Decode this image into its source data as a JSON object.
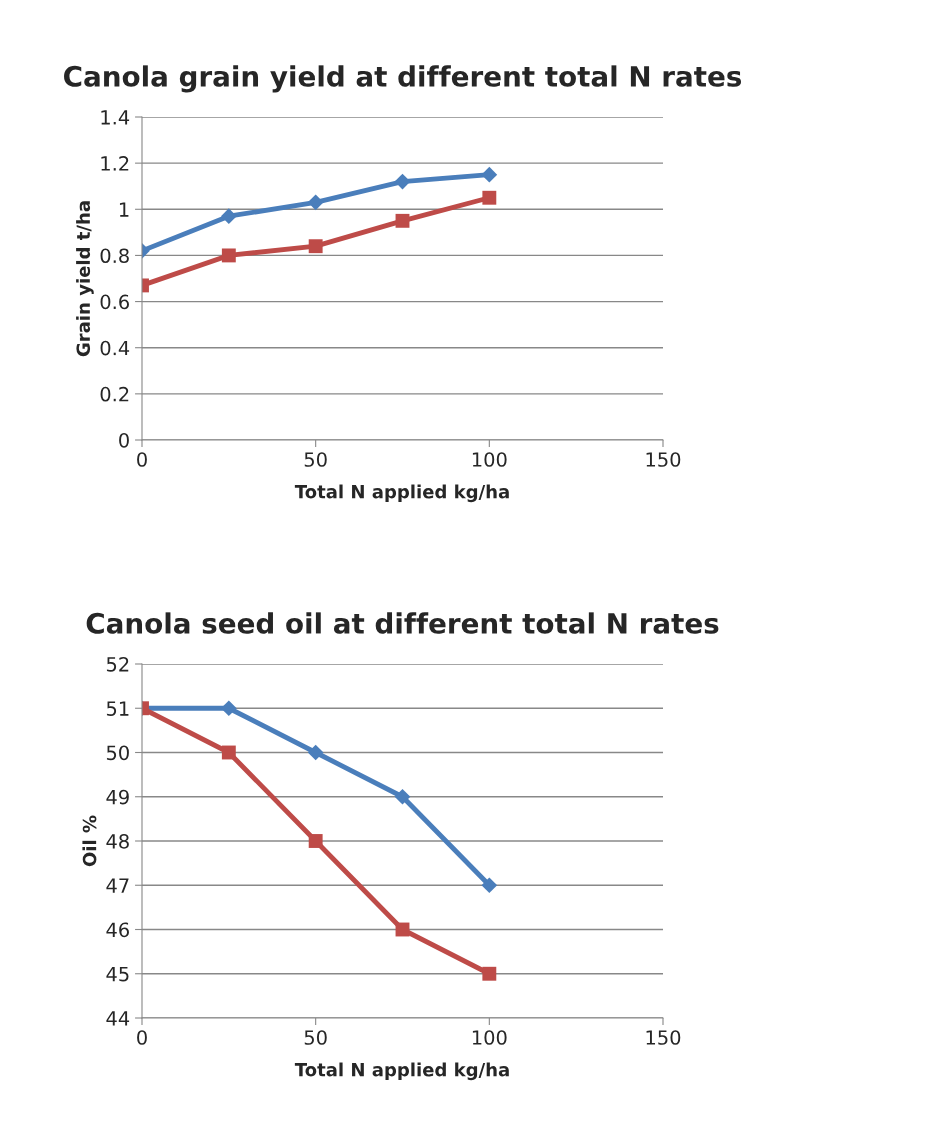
{
  "chart_data": [
    {
      "type": "line",
      "title": "Canola grain yield at different total N rates",
      "xlabel": "Total N applied kg/ha",
      "ylabel": "Grain yield t/ha",
      "x": [
        0,
        25,
        50,
        75,
        100
      ],
      "xlim": [
        0,
        150
      ],
      "xticks": [
        0,
        50,
        100,
        150
      ],
      "ylim": [
        0,
        1.4
      ],
      "yticks": [
        0,
        0.2,
        0.4,
        0.6,
        0.8,
        1,
        1.2,
        1.4
      ],
      "grid": "y",
      "series": [
        {
          "color": "#4a7ebb",
          "marker": "diamond",
          "values": [
            0.82,
            0.97,
            1.03,
            1.12,
            1.15
          ]
        },
        {
          "color": "#be4b48",
          "marker": "square",
          "values": [
            0.67,
            0.8,
            0.84,
            0.95,
            1.05
          ]
        }
      ]
    },
    {
      "type": "line",
      "title": "Canola seed oil at different total N rates",
      "xlabel": "Total N applied kg/ha",
      "ylabel": "Oil %",
      "x": [
        0,
        25,
        50,
        75,
        100
      ],
      "xlim": [
        0,
        150
      ],
      "xticks": [
        0,
        50,
        100,
        150
      ],
      "ylim": [
        44,
        52
      ],
      "yticks": [
        44,
        45,
        46,
        47,
        48,
        49,
        50,
        51,
        52
      ],
      "grid": "y",
      "series": [
        {
          "color": "#4a7ebb",
          "marker": "diamond",
          "values": [
            51,
            51,
            50,
            49,
            47
          ]
        },
        {
          "color": "#be4b48",
          "marker": "square",
          "values": [
            51,
            50,
            48,
            46,
            45
          ]
        }
      ]
    }
  ]
}
